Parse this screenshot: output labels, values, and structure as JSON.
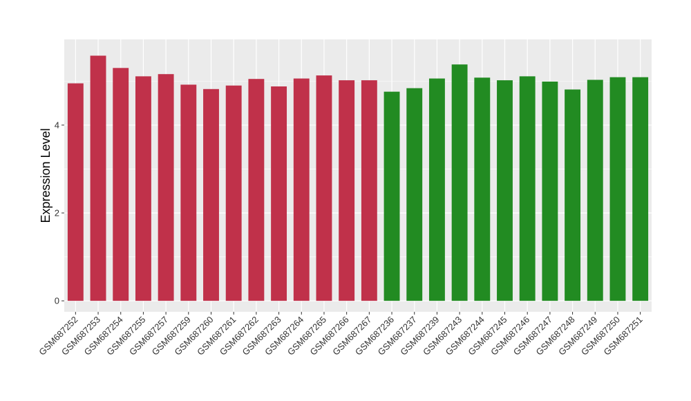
{
  "chart_data": {
    "type": "bar",
    "title": "",
    "xlabel": "",
    "ylabel": "Expression Level",
    "ylim": [
      -0.25,
      5.95
    ],
    "yticks": [
      0,
      2,
      4
    ],
    "grid": true,
    "legend": "none",
    "categories": [
      "GSM687252",
      "GSM687253",
      "GSM687254",
      "GSM687255",
      "GSM687257",
      "GSM687259",
      "GSM687260",
      "GSM687261",
      "GSM687262",
      "GSM687263",
      "GSM687264",
      "GSM687265",
      "GSM687266",
      "GSM687267",
      "GSM687236",
      "GSM687237",
      "GSM687239",
      "GSM687243",
      "GSM687244",
      "GSM687245",
      "GSM687246",
      "GSM687247",
      "GSM687248",
      "GSM687249",
      "GSM687250",
      "GSM687251"
    ],
    "values": [
      4.95,
      5.58,
      5.3,
      5.11,
      5.16,
      4.92,
      4.82,
      4.9,
      5.05,
      4.88,
      5.06,
      5.13,
      5.02,
      5.02,
      4.76,
      4.84,
      5.06,
      5.38,
      5.08,
      5.02,
      5.11,
      4.99,
      4.81,
      5.03,
      5.09,
      5.09
    ],
    "bar_colors": [
      "#C0314A",
      "#C0314A",
      "#C0314A",
      "#C0314A",
      "#C0314A",
      "#C0314A",
      "#C0314A",
      "#C0314A",
      "#C0314A",
      "#C0314A",
      "#C0314A",
      "#C0314A",
      "#C0314A",
      "#C0314A",
      "#228B22",
      "#228B22",
      "#228B22",
      "#228B22",
      "#228B22",
      "#228B22",
      "#228B22",
      "#228B22",
      "#228B22",
      "#228B22",
      "#228B22",
      "#228B22"
    ],
    "panel_background": "#EBEBEB",
    "grid_color": "#FFFFFF"
  }
}
